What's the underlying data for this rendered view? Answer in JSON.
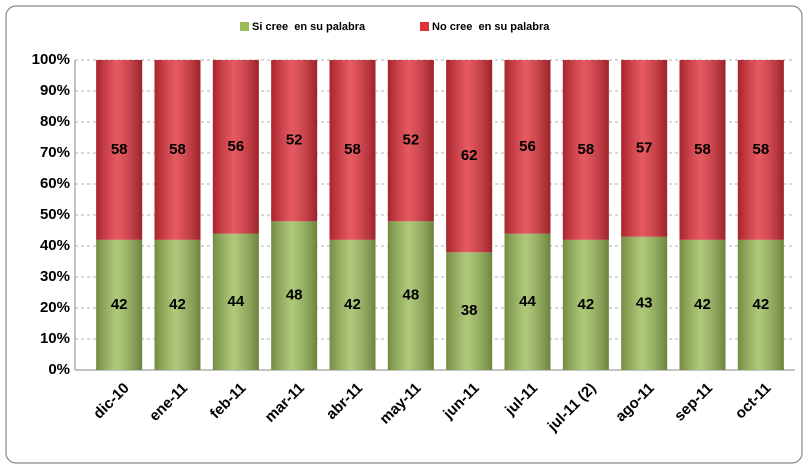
{
  "chart_data": {
    "type": "stacked_bar",
    "categories": [
      "dic-10",
      "ene-11",
      "feb-11",
      "mar-11",
      "abr-11",
      "may-11",
      "jun-11",
      "jul-11",
      "jul-11 (2)",
      "ago-11",
      "sep-11",
      "oct-11"
    ],
    "series": [
      {
        "name": "Si cree  en su palabra",
        "color": "#9bbb59",
        "values": [
          42,
          42,
          44,
          48,
          42,
          48,
          38,
          44,
          42,
          43,
          42,
          42
        ]
      },
      {
        "name": "No cree  en su palabra",
        "color": "#e0303a",
        "values": [
          58,
          58,
          56,
          52,
          58,
          52,
          62,
          56,
          58,
          57,
          58,
          58
        ]
      }
    ],
    "ylim": [
      0,
      100
    ],
    "yticks": [
      {
        "value": 0,
        "label": "0%"
      },
      {
        "value": 10,
        "label": "10%"
      },
      {
        "value": 20,
        "label": "20%"
      },
      {
        "value": 30,
        "label": "30%"
      },
      {
        "value": 40,
        "label": "40%"
      },
      {
        "value": 50,
        "label": "50%"
      },
      {
        "value": 60,
        "label": "60%"
      },
      {
        "value": 70,
        "label": "70%"
      },
      {
        "value": 80,
        "label": "80%"
      },
      {
        "value": 90,
        "label": "90%"
      },
      {
        "value": 100,
        "label": "100%"
      }
    ],
    "grid": true,
    "legend": "top"
  }
}
